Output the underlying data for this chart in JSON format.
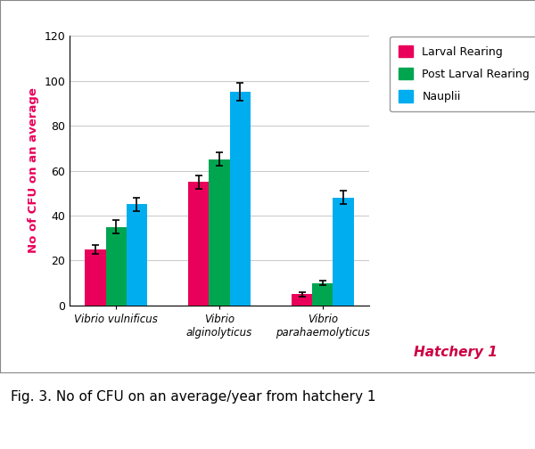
{
  "categories": [
    "Vibrio vulnificus",
    "Vibrio\nalginolyticus",
    "Vibrio\nparahaemolyticus"
  ],
  "series": {
    "Larval Rearing": [
      25,
      55,
      5
    ],
    "Post Larval Rearing": [
      35,
      65,
      10
    ],
    "Nauplii": [
      45,
      95,
      48
    ]
  },
  "errors": {
    "Larval Rearing": [
      2,
      3,
      1
    ],
    "Post Larval Rearing": [
      3,
      3,
      1
    ],
    "Nauplii": [
      3,
      4,
      3
    ]
  },
  "colors": {
    "Larval Rearing": "#E8005A",
    "Post Larval Rearing": "#00A550",
    "Nauplii": "#00ADEF"
  },
  "ylabel": "No of CFU on an average",
  "ylabel_color": "#E8005A",
  "ylim": [
    0,
    120
  ],
  "yticks": [
    0,
    20,
    40,
    60,
    80,
    100,
    120
  ],
  "hatchery_label": "Hatchery 1",
  "hatchery_color": "#CC0044",
  "caption": "Fig. 3. No of CFU on an average/year from hatchery 1",
  "bar_width": 0.2,
  "background_color": "#FFFFFF",
  "plot_bg_color": "#FFFFFF",
  "grid_color": "#CCCCCC",
  "legend_order": [
    "Larval Rearing",
    "Post Larval Rearing",
    "Nauplii"
  ]
}
